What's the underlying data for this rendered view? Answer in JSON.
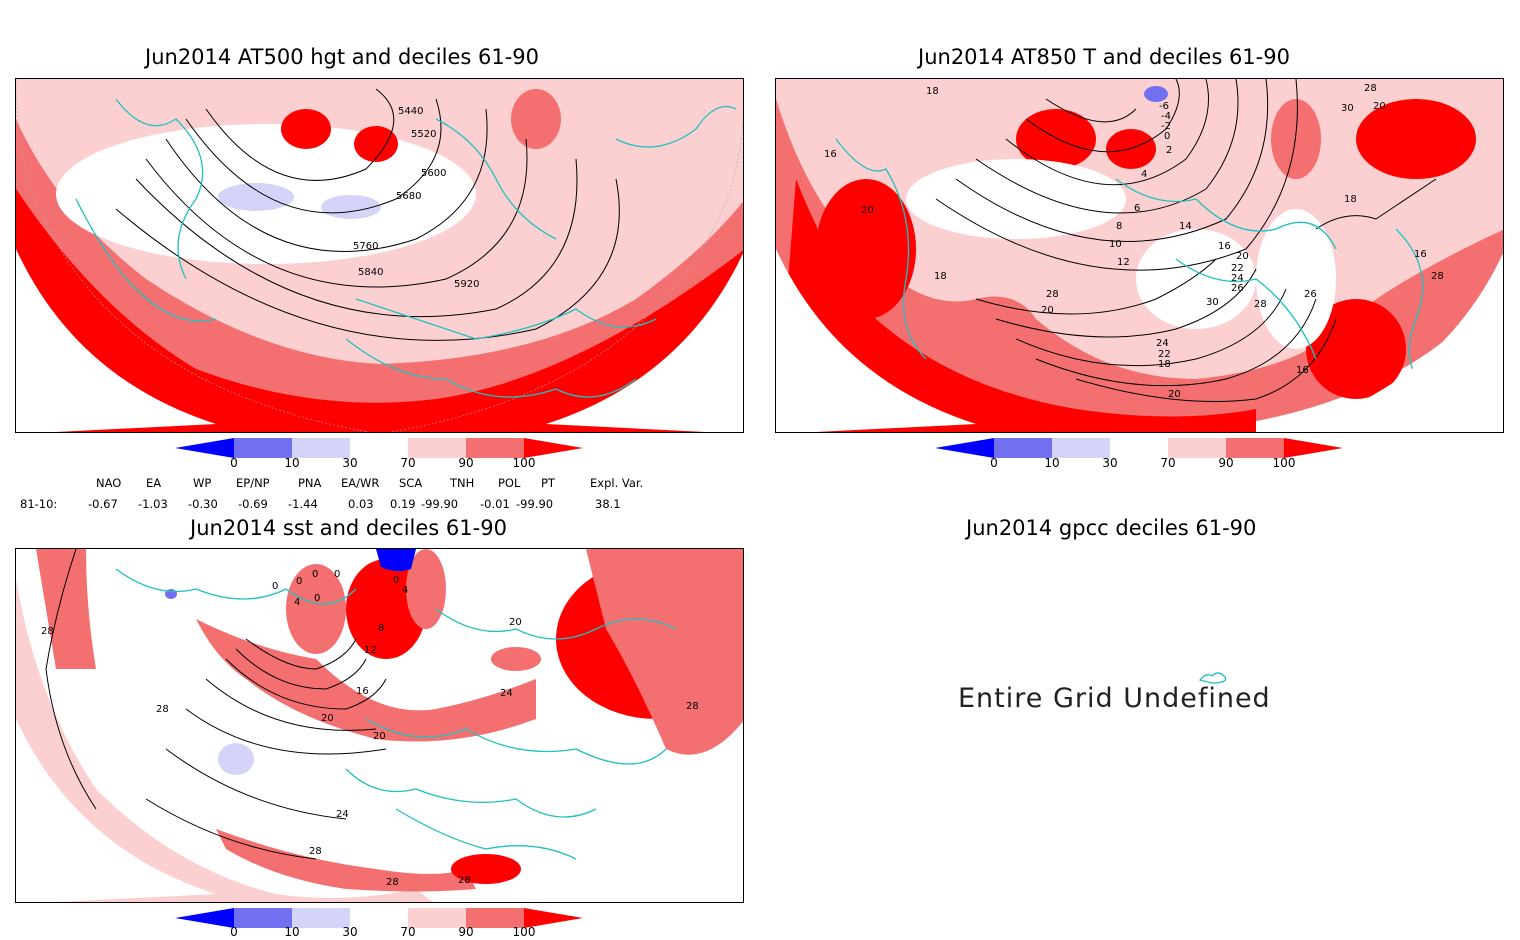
{
  "panels": {
    "top_left_title": "Jun2014 AT500 hgt and deciles 61-90",
    "top_right_title": "Jun2014 AT850 T and deciles 61-90",
    "bottom_left_title": "Jun2014 sst and deciles 61-90",
    "bottom_right_title": "Jun2014 gpcc deciles 61-90",
    "undefined_text": "Entire Grid Undefined"
  },
  "colorbar": {
    "ticks": [
      "0",
      "10",
      "30",
      "70",
      "90",
      "100"
    ],
    "colors": [
      "#0000ff",
      "#7070f0",
      "#d4d4f8",
      "#ffffff",
      "#fcd0d0",
      "#f47070",
      "#ff0000"
    ]
  },
  "teleconnections": {
    "row_label": "81-10:",
    "headers": [
      "NAO",
      "EA",
      "WP",
      "EP/NP",
      "PNA",
      "EA/WR",
      "SCA",
      "TNH",
      "POL",
      "PT",
      "Expl. Var."
    ],
    "values": [
      "-0.67",
      "-1.03",
      "-0.30",
      "-0.69",
      "-1.44",
      "0.03",
      "0.19",
      "-99.90",
      "-0.01",
      "-99.90",
      "38.1"
    ]
  },
  "contour_labels": {
    "hgt": [
      "5440",
      "5520",
      "5600",
      "5680",
      "5760",
      "5840",
      "5920"
    ],
    "t850": [
      "18",
      "16",
      "20",
      "18",
      "-6",
      "-4",
      "-2",
      "0",
      "2",
      "4",
      "6",
      "8",
      "10",
      "12",
      "14",
      "16",
      "20",
      "22",
      "24",
      "26",
      "28",
      "30",
      "20",
      "28",
      "30",
      "18",
      "16",
      "28",
      "26",
      "24",
      "22",
      "18",
      "20",
      "16",
      "20",
      "28"
    ],
    "sst": [
      "28",
      "28",
      "0",
      "0",
      "0",
      "0",
      "0",
      "0",
      "4",
      "4",
      "8",
      "12",
      "16",
      "20",
      "20",
      "24",
      "24",
      "28",
      "28",
      "28",
      "20",
      "28"
    ]
  }
}
